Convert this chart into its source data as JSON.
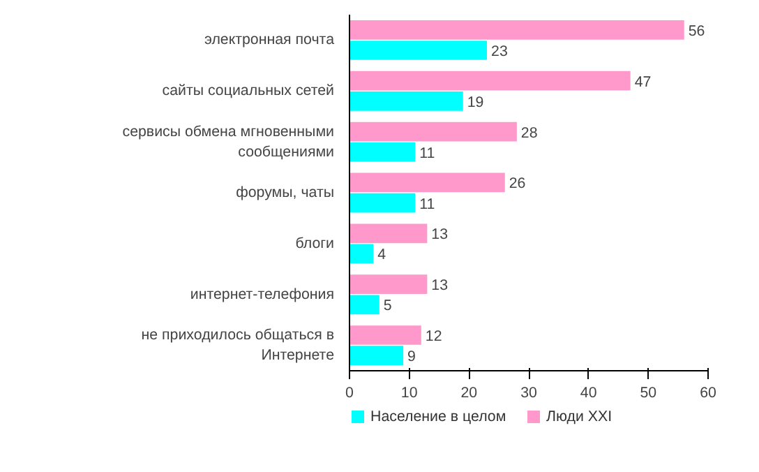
{
  "chart_data": {
    "type": "bar",
    "orientation": "horizontal",
    "categories": [
      "электронная почта",
      "сайты социальных сетей",
      "сервисы обмена мгновенными сообщениями",
      "форумы, чаты",
      "блоги",
      "интернет-телефония",
      "не приходилось общаться в Интернете"
    ],
    "series": [
      {
        "name": "Население в целом",
        "color": "#00ffff",
        "values": [
          23,
          19,
          11,
          11,
          4,
          5,
          9
        ]
      },
      {
        "name": "Люди XXI",
        "color": "#ff99cc",
        "values": [
          56,
          47,
          28,
          26,
          13,
          13,
          12
        ]
      }
    ],
    "xlim": [
      0,
      60
    ],
    "xticks": [
      0,
      10,
      20,
      30,
      40,
      50,
      60
    ],
    "data_labels": true,
    "grid": false,
    "legend": "bottom"
  }
}
